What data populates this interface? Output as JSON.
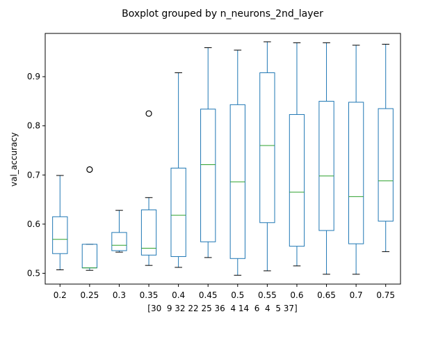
{
  "chart_data": {
    "type": "boxplot",
    "title": "Boxplot grouped by n_neurons_2nd_layer",
    "xlabel": "[30  9 32 22 25 36  4 14  6  4  5 37]",
    "ylabel": "val_accuracy",
    "ylim": [
      0.478,
      0.988
    ],
    "yticks": [
      0.5,
      0.6,
      0.7,
      0.8,
      0.9
    ],
    "ytick_labels": [
      "0.5",
      "0.6",
      "0.7",
      "0.8",
      "0.9"
    ],
    "grid": false,
    "legend": "none",
    "categories": [
      "0.2",
      "0.25",
      "0.3",
      "0.35",
      "0.4",
      "0.45",
      "0.5",
      "0.55",
      "0.6",
      "0.65",
      "0.7",
      "0.75"
    ],
    "boxes": [
      {
        "whisker_low": 0.507,
        "q1": 0.54,
        "median": 0.569,
        "q3": 0.615,
        "whisker_high": 0.699,
        "outliers": []
      },
      {
        "whisker_low": 0.506,
        "q1": 0.511,
        "median": 0.511,
        "q3": 0.559,
        "whisker_high": 0.559,
        "outliers": [
          0.711
        ]
      },
      {
        "whisker_low": 0.543,
        "q1": 0.546,
        "median": 0.557,
        "q3": 0.583,
        "whisker_high": 0.628,
        "outliers": []
      },
      {
        "whisker_low": 0.516,
        "q1": 0.537,
        "median": 0.551,
        "q3": 0.629,
        "whisker_high": 0.654,
        "outliers": [
          0.825
        ]
      },
      {
        "whisker_low": 0.512,
        "q1": 0.534,
        "median": 0.618,
        "q3": 0.714,
        "whisker_high": 0.908,
        "outliers": []
      },
      {
        "whisker_low": 0.532,
        "q1": 0.564,
        "median": 0.721,
        "q3": 0.834,
        "whisker_high": 0.959,
        "outliers": []
      },
      {
        "whisker_low": 0.496,
        "q1": 0.53,
        "median": 0.686,
        "q3": 0.843,
        "whisker_high": 0.954,
        "outliers": []
      },
      {
        "whisker_low": 0.505,
        "q1": 0.603,
        "median": 0.76,
        "q3": 0.908,
        "whisker_high": 0.971,
        "outliers": []
      },
      {
        "whisker_low": 0.515,
        "q1": 0.555,
        "median": 0.665,
        "q3": 0.823,
        "whisker_high": 0.969,
        "outliers": []
      },
      {
        "whisker_low": 0.498,
        "q1": 0.587,
        "median": 0.698,
        "q3": 0.85,
        "whisker_high": 0.969,
        "outliers": []
      },
      {
        "whisker_low": 0.498,
        "q1": 0.56,
        "median": 0.656,
        "q3": 0.848,
        "whisker_high": 0.964,
        "outliers": []
      },
      {
        "whisker_low": 0.544,
        "q1": 0.606,
        "median": 0.688,
        "q3": 0.835,
        "whisker_high": 0.966,
        "outliers": []
      }
    ],
    "colors": {
      "box": "#1f77b4",
      "median": "#2ca02c",
      "axis": "#000000",
      "outlier": "#000000"
    }
  }
}
